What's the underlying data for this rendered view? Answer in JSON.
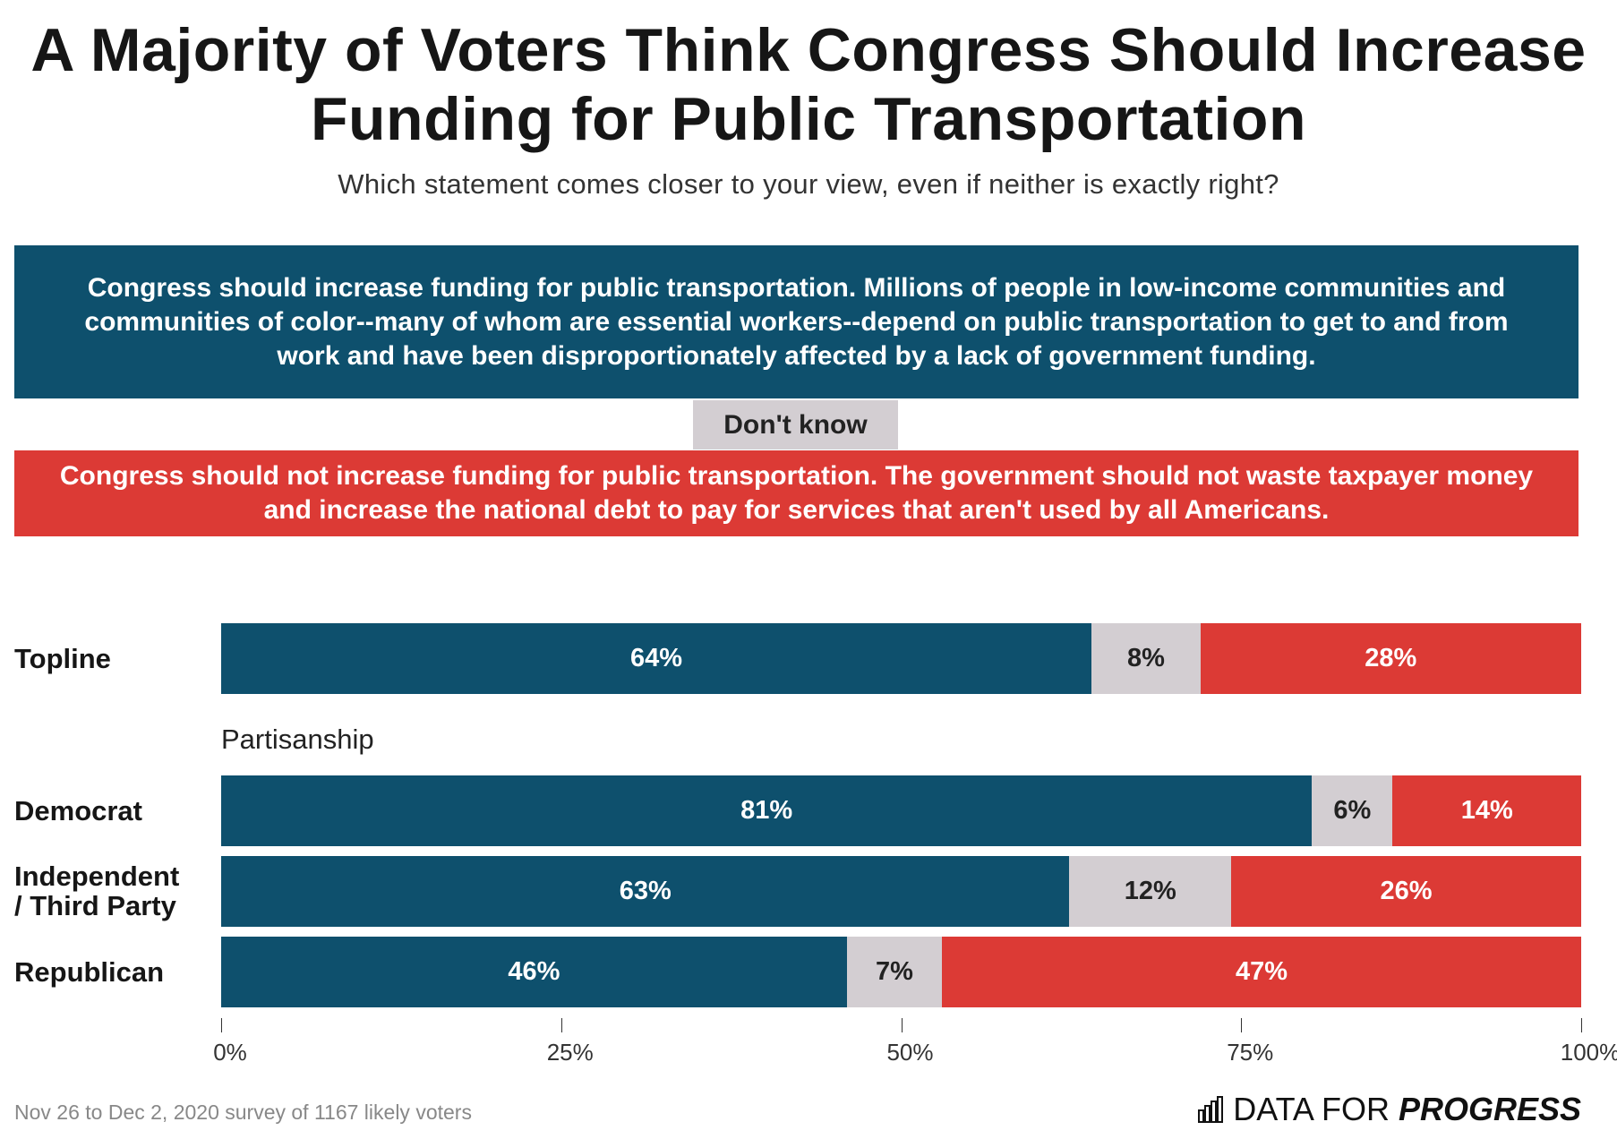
{
  "colors": {
    "support": "#0e506d",
    "dont_know": "#d3ced2",
    "oppose": "#dc3a35"
  },
  "chart_data": {
    "type": "bar",
    "orientation": "horizontal-stacked-100",
    "title": "A Majority of Voters Think Congress Should Increase Funding for Public Transportation",
    "subtitle": "Which statement comes closer to your view, even if neither is exactly right?",
    "legend": {
      "support": "Congress should increase funding for public transportation. Millions of people in low-income communities and communities of color--many of whom are essential workers--depend on public transportation to get to and from work and have been disproportionately affected by a lack of government funding.",
      "dont_know": "Don't know",
      "oppose": "Congress should not increase funding for public transportation. The government should not waste taxpayer money and increase the national debt to pay for services that aren't used by all Americans."
    },
    "group_label": "Partisanship",
    "rows": [
      {
        "label": "Topline",
        "support": 64,
        "dont_know": 8,
        "oppose": 28
      },
      {
        "label": "Democrat",
        "support": 81,
        "dont_know": 6,
        "oppose": 14
      },
      {
        "label": "Independent / Third Party",
        "support": 63,
        "dont_know": 12,
        "oppose": 26
      },
      {
        "label": "Republican",
        "support": 46,
        "dont_know": 7,
        "oppose": 47
      }
    ],
    "xlim": [
      0,
      100
    ],
    "x_ticks": [
      "0%",
      "25%",
      "50%",
      "75%",
      "100%"
    ],
    "grid": false
  },
  "footer": {
    "source": "Nov 26 to Dec 2, 2020 survey of 1167 likely voters",
    "logo_light": "DATA FOR",
    "logo_bold": "PROGRESS"
  }
}
